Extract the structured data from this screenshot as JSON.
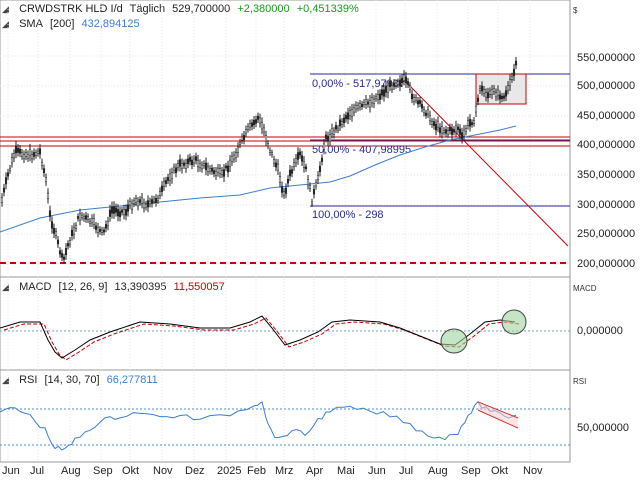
{
  "price_panel": {
    "symbol": "CRWDSTRK HLD I/d",
    "period": "Täglich",
    "last": "529,700000",
    "change": "+2,380000",
    "change_pct": "+0,451339%",
    "currency": "$",
    "sma_label": "SMA",
    "sma_param": "[200]",
    "sma_value": "432,894125",
    "y_ticks": [
      "550,000000",
      "500,000000",
      "450,000000",
      "400,000000",
      "350,000000",
      "300,000000",
      "250,000000",
      "200,000000"
    ],
    "fib_levels": [
      {
        "label": "0,00% - 517,97997",
        "value": 517.98
      },
      {
        "label": "50,00% - 407,98995",
        "value": 407.99
      },
      {
        "label": "100,00% - 298",
        "value": 298
      }
    ],
    "colors": {
      "up": "#222222",
      "sma": "#3a7fd5",
      "fib": "#2a2a9a",
      "support": "#cc0000",
      "positive": "#1a9a1a"
    }
  },
  "macd_panel": {
    "label": "MACD",
    "params": "[12, 26, 9]",
    "macd_value": "13,390395",
    "signal_value": "11,550057",
    "tag": "MACD",
    "y_tick": "0,000000",
    "colors": {
      "macd": "#000000",
      "signal": "#cc0000"
    }
  },
  "rsi_panel": {
    "label": "RSI",
    "params": "[14, 30, 70]",
    "value": "66,277811",
    "tag": "RSI",
    "y_tick": "50,000000",
    "colors": {
      "rsi": "#3a7fd5",
      "band": "#4a90d9"
    }
  },
  "x_axis": {
    "labels": [
      "Jun",
      "Jul",
      "Aug",
      "Sep",
      "Okt",
      "Nov",
      "Dez",
      "2025",
      "Feb",
      "Mrz",
      "Apr",
      "Mai",
      "Jun",
      "Jul",
      "Aug",
      "Sep",
      "Okt",
      "Nov"
    ]
  }
}
